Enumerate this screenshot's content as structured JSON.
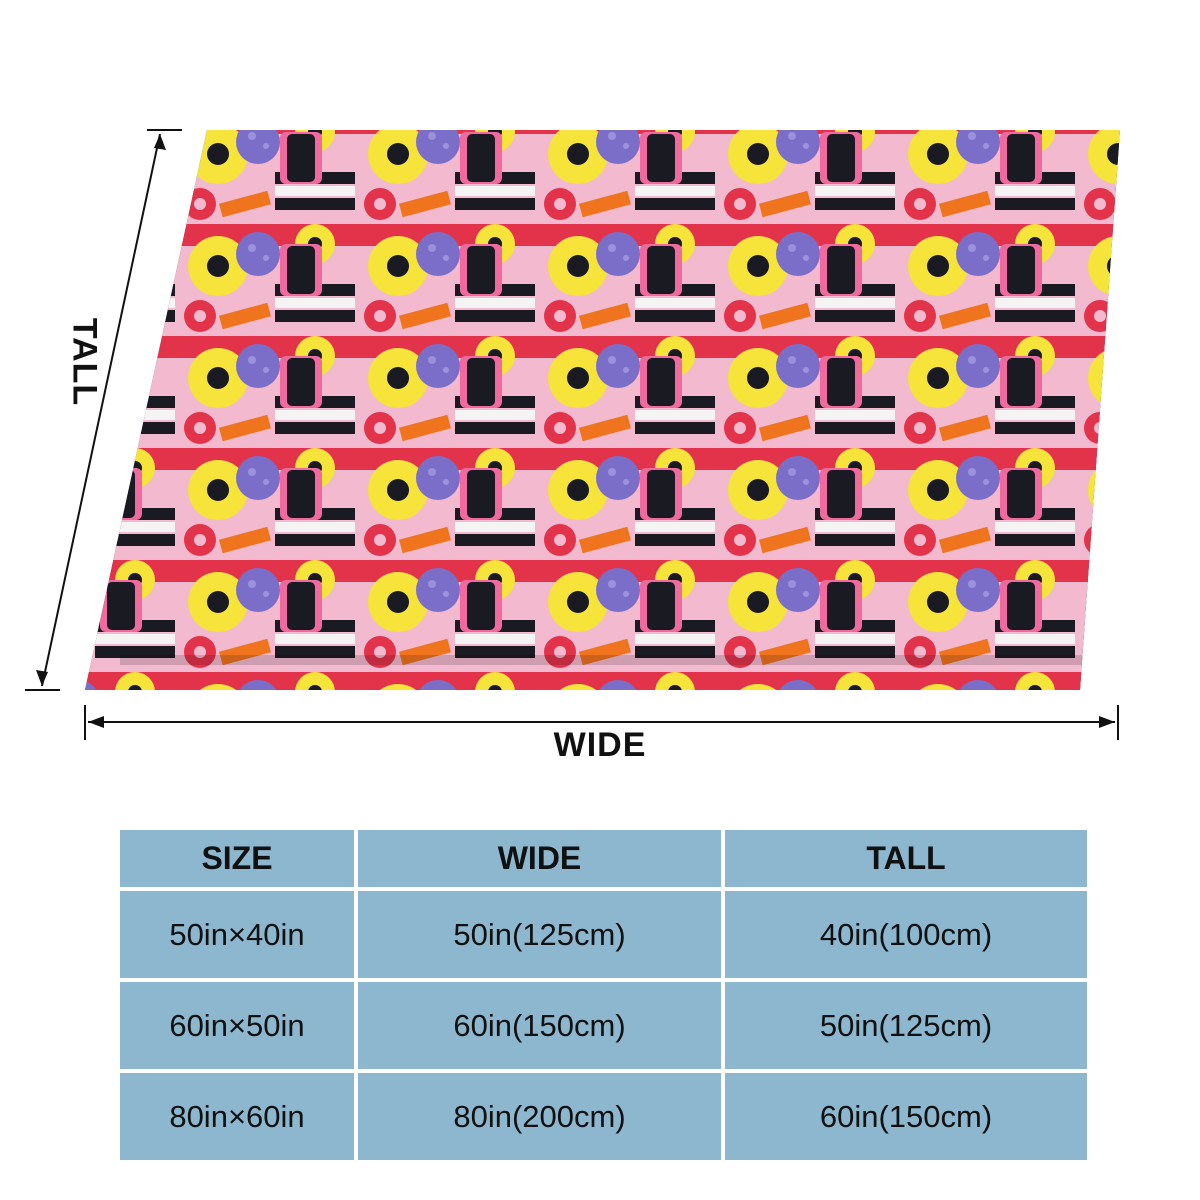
{
  "product": {
    "pattern": "liquorice allsorts candy",
    "colors": {
      "pink": "#f06aa0",
      "yellow": "#f6e43a",
      "black": "#1a1a22",
      "purple": "#7a6ec8",
      "orange": "#f0741e",
      "red": "#e3334a"
    }
  },
  "dimension_labels": {
    "wide": "WIDE",
    "tall": "TALL"
  },
  "size_table": {
    "headers": [
      "SIZE",
      "WIDE",
      "TALL"
    ],
    "rows": [
      [
        "50in×40in",
        "50in(125cm)",
        "40in(100cm)"
      ],
      [
        "60in×50in",
        "60in(150cm)",
        "50in(125cm)"
      ],
      [
        "80in×60in",
        "80in(200cm)",
        "60in(150cm)"
      ]
    ],
    "cell_color": "#8cb7cf"
  }
}
